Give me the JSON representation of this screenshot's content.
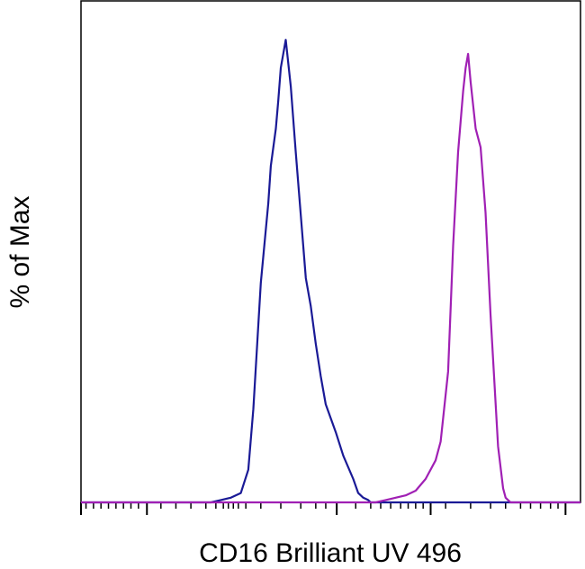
{
  "chart_data": {
    "type": "line",
    "xlabel": "CD16 Brilliant UV 496",
    "ylabel": "% of Max",
    "xlim": [
      0,
      1
    ],
    "ylim": [
      0,
      100
    ],
    "grid": false,
    "legend": "none",
    "series": [
      {
        "color": "#1a1a96",
        "x": [
          0.0,
          0.26,
          0.28,
          0.3,
          0.32,
          0.335,
          0.345,
          0.36,
          0.375,
          0.38,
          0.39,
          0.395,
          0.4,
          0.41,
          0.42,
          0.43,
          0.45,
          0.46,
          0.47,
          0.48,
          0.49,
          0.51,
          0.525,
          0.545,
          0.555,
          0.565,
          0.575,
          0.58,
          1.0
        ],
        "y": [
          0,
          0,
          0.5,
          1,
          2,
          7,
          20,
          47,
          64,
          72,
          80,
          86,
          93,
          99,
          89,
          75,
          48,
          42,
          34,
          27,
          21,
          15,
          10,
          5,
          2,
          1,
          0.5,
          0,
          0
        ]
      },
      {
        "color": "#a020b4",
        "x": [
          0.0,
          0.59,
          0.61,
          0.63,
          0.65,
          0.67,
          0.69,
          0.71,
          0.72,
          0.735,
          0.745,
          0.755,
          0.765,
          0.77,
          0.775,
          0.78,
          0.79,
          0.8,
          0.81,
          0.82,
          0.835,
          0.845,
          0.85,
          0.855,
          0.86,
          1.0
        ],
        "y": [
          0,
          0,
          0.5,
          1,
          1.5,
          2.5,
          5,
          9,
          13,
          28,
          55,
          75,
          88,
          93,
          96,
          90,
          80,
          76,
          62,
          40,
          12,
          3,
          1,
          0.5,
          0,
          0
        ]
      }
    ]
  }
}
